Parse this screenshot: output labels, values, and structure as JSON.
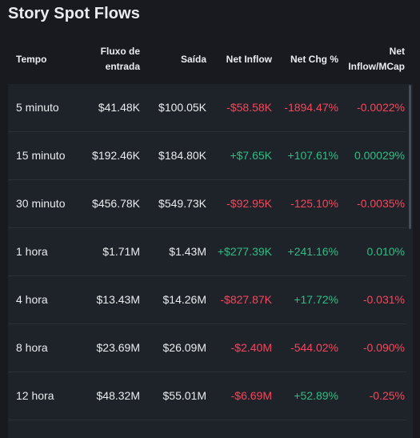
{
  "title": "Story Spot Flows",
  "columns": {
    "time": "Tempo",
    "inflow_line1": "Fluxo de",
    "inflow_line2": "entrada",
    "outflow": "Saída",
    "net_inflow": "Net Inflow",
    "net_chg": "Net Chg %",
    "mcap_line1": "Net",
    "mcap_line2": "Inflow/MCap"
  },
  "rows": [
    {
      "time": "5 minuto",
      "inflow": "$41.48K",
      "outflow": "$100.05K",
      "net_inflow": "-$58.58K",
      "net_chg": "-1894.47%",
      "mcap": "-0.0022%",
      "net_inflow_sign": "neg",
      "net_chg_sign": "neg",
      "mcap_sign": "neg"
    },
    {
      "time": "15 minuto",
      "inflow": "$192.46K",
      "outflow": "$184.80K",
      "net_inflow": "+$7.65K",
      "net_chg": "+107.61%",
      "mcap": "0.00029%",
      "net_inflow_sign": "pos",
      "net_chg_sign": "pos",
      "mcap_sign": "pos"
    },
    {
      "time": "30 minuto",
      "inflow": "$456.78K",
      "outflow": "$549.73K",
      "net_inflow": "-$92.95K",
      "net_chg": "-125.10%",
      "mcap": "-0.0035%",
      "net_inflow_sign": "neg",
      "net_chg_sign": "neg",
      "mcap_sign": "neg"
    },
    {
      "time": "1 hora",
      "inflow": "$1.71M",
      "outflow": "$1.43M",
      "net_inflow": "+$277.39K",
      "net_chg": "+241.16%",
      "mcap": "0.010%",
      "net_inflow_sign": "pos",
      "net_chg_sign": "pos",
      "mcap_sign": "pos"
    },
    {
      "time": "4 hora",
      "inflow": "$13.43M",
      "outflow": "$14.26M",
      "net_inflow": "-$827.87K",
      "net_chg": "+17.72%",
      "mcap": "-0.031%",
      "net_inflow_sign": "neg",
      "net_chg_sign": "pos",
      "mcap_sign": "neg"
    },
    {
      "time": "8 hora",
      "inflow": "$23.69M",
      "outflow": "$26.09M",
      "net_inflow": "-$2.40M",
      "net_chg": "-544.02%",
      "mcap": "-0.090%",
      "net_inflow_sign": "neg",
      "net_chg_sign": "neg",
      "mcap_sign": "neg"
    },
    {
      "time": "12 hora",
      "inflow": "$48.32M",
      "outflow": "$55.01M",
      "net_inflow": "-$6.69M",
      "net_chg": "+52.89%",
      "mcap": "-0.25%",
      "net_inflow_sign": "neg",
      "net_chg_sign": "pos",
      "mcap_sign": "neg"
    }
  ],
  "colors": {
    "positive": "#2ebd85",
    "negative": "#f6465d",
    "background": "#181a20",
    "table_bg": "#1e2329"
  }
}
